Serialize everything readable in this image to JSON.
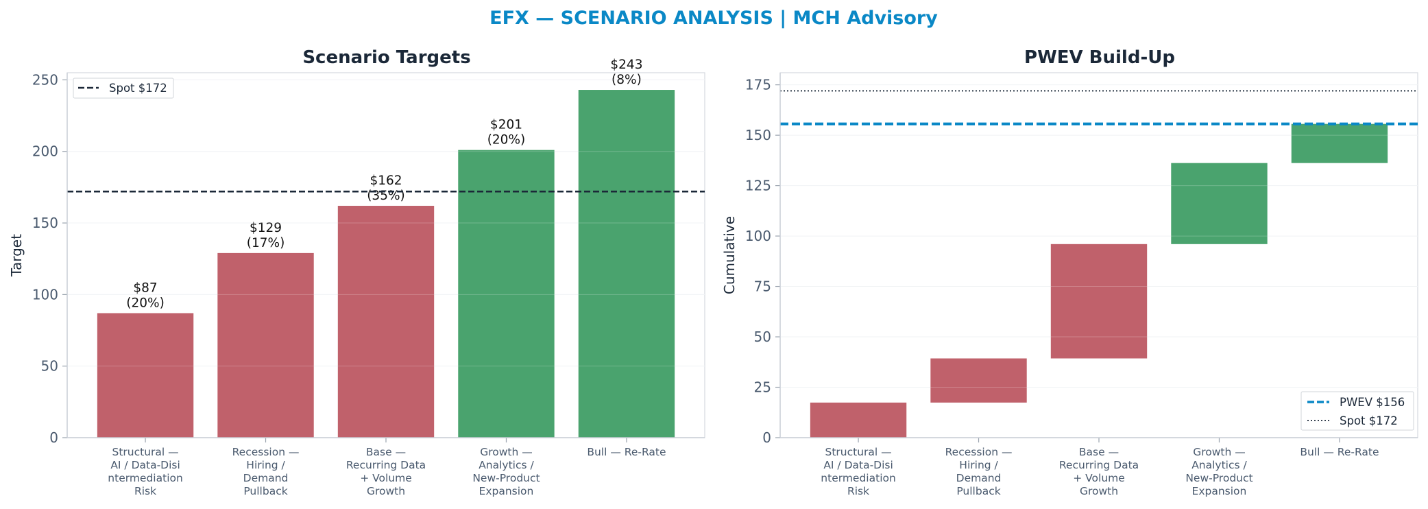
{
  "suptitle": "EFX — SCENARIO ANALYSIS | MCH Advisory",
  "colors": {
    "bear": "#c0616b",
    "bull": "#4aa36e",
    "spot": "#1b2838",
    "pwev": "#0a88c6",
    "suptitle": "#0a88c6",
    "title": "#1b2838",
    "tick": "#4a5a6e"
  },
  "chart_data": [
    {
      "type": "bar",
      "title": "Scenario Targets",
      "ylabel": "Target",
      "xlabel": "",
      "ylim": [
        0,
        255
      ],
      "yticks": [
        0,
        50,
        100,
        150,
        200,
        250
      ],
      "grid": true,
      "categories": [
        [
          "Structural —",
          "AI / Data-Disi",
          "ntermediation",
          "Risk"
        ],
        [
          "Recession —",
          "Hiring /",
          "Demand",
          "Pullback"
        ],
        [
          "Base —",
          "Recurring Data",
          "+ Volume",
          "Growth"
        ],
        [
          "Growth —",
          "Analytics /",
          "New-Product",
          "Expansion"
        ],
        [
          "Bull — Re-Rate"
        ]
      ],
      "values": [
        87,
        129,
        162,
        201,
        243
      ],
      "probabilities": [
        "20%",
        "17%",
        "35%",
        "20%",
        "8%"
      ],
      "data_labels": [
        [
          "$87",
          "(20%)"
        ],
        [
          "$129",
          "(17%)"
        ],
        [
          "$162",
          "(35%)"
        ],
        [
          "$201",
          "(20%)"
        ],
        [
          "$243",
          "(8%)"
        ]
      ],
      "bar_colors": [
        "bear",
        "bear",
        "bear",
        "bull",
        "bull"
      ],
      "reference_line": {
        "label": "Spot $172",
        "value": 172,
        "style": "dashed"
      },
      "legend": {
        "position": "top-left",
        "entries": [
          "Spot $172"
        ]
      }
    },
    {
      "type": "bar",
      "subtype": "waterfall",
      "title": "PWEV Build-Up",
      "ylabel": "Cumulative",
      "xlabel": "",
      "ylim": [
        0,
        181
      ],
      "yticks": [
        0,
        25,
        50,
        75,
        100,
        125,
        150,
        175
      ],
      "grid": true,
      "categories": [
        [
          "Structural —",
          "AI / Data-Disi",
          "ntermediation",
          "Risk"
        ],
        [
          "Recession —",
          "Hiring /",
          "Demand",
          "Pullback"
        ],
        [
          "Base —",
          "Recurring Data",
          "+ Volume",
          "Growth"
        ],
        [
          "Growth —",
          "Analytics /",
          "New-Product",
          "Expansion"
        ],
        [
          "Bull — Re-Rate"
        ]
      ],
      "contributions": [
        17.4,
        21.9,
        56.7,
        40.2,
        19.4
      ],
      "cumulative": [
        17.4,
        39.3,
        96.0,
        136.2,
        155.6
      ],
      "bar_colors": [
        "bear",
        "bear",
        "bear",
        "bull",
        "bull"
      ],
      "reference_lines": [
        {
          "label": "PWEV $156",
          "value": 155.6,
          "style": "dashed"
        },
        {
          "label": "Spot $172",
          "value": 172,
          "style": "dotted"
        }
      ],
      "legend": {
        "position": "bottom-right",
        "entries": [
          "PWEV $156",
          "Spot $172"
        ]
      }
    }
  ]
}
